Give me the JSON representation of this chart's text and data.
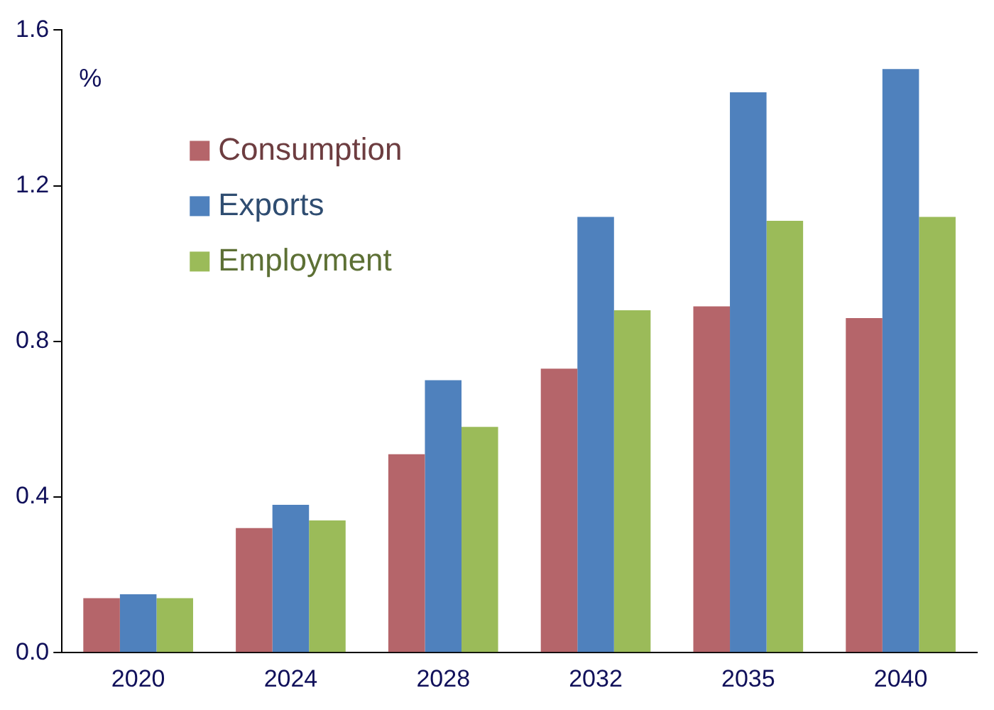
{
  "chart_data": {
    "type": "bar",
    "ylabel": "%",
    "categories": [
      "2020",
      "2024",
      "2028",
      "2032",
      "2035",
      "2040"
    ],
    "series": [
      {
        "name": "Consumption",
        "color": "#b5656a",
        "values": [
          0.14,
          0.32,
          0.51,
          0.73,
          0.89,
          0.86
        ]
      },
      {
        "name": "Exports",
        "color": "#4f81bd",
        "values": [
          0.15,
          0.38,
          0.7,
          1.12,
          1.44,
          1.5
        ]
      },
      {
        "name": "Employment",
        "color": "#9bbb59",
        "values": [
          0.14,
          0.34,
          0.58,
          0.88,
          1.11,
          1.12
        ]
      }
    ],
    "ylim": [
      0,
      1.6
    ],
    "yticks": [
      {
        "value": 0,
        "label": "0.0"
      },
      0.4,
      0.8,
      1.2,
      1.6
    ],
    "legend": "top left"
  }
}
